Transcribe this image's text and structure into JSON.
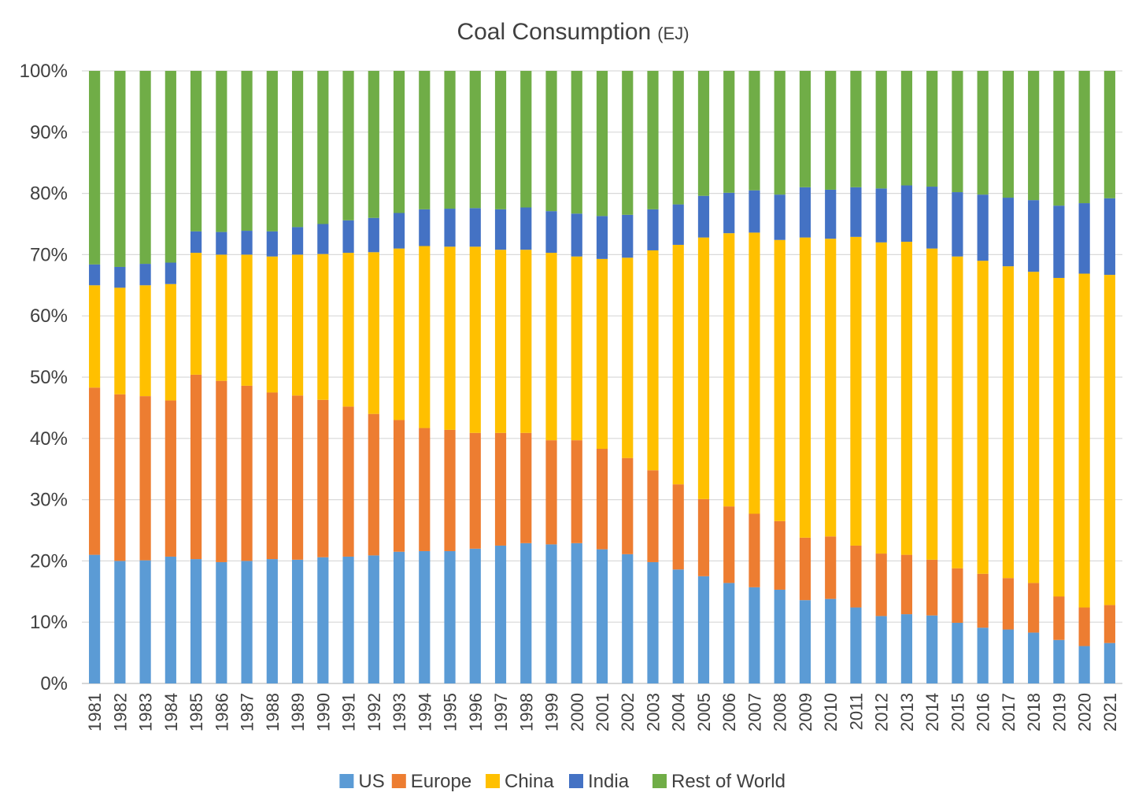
{
  "chart_data": {
    "type": "bar",
    "stacked": true,
    "normalized": true,
    "title": "Coal Consumption",
    "title_unit": "(EJ)",
    "xlabel": "",
    "ylabel": "",
    "ylim": [
      0,
      100
    ],
    "yticks": [
      "0%",
      "10%",
      "20%",
      "30%",
      "40%",
      "50%",
      "60%",
      "70%",
      "80%",
      "90%",
      "100%"
    ],
    "grid": true,
    "legend_position": "bottom",
    "categories": [
      "1981",
      "1982",
      "1983",
      "1984",
      "1985",
      "1986",
      "1987",
      "1988",
      "1989",
      "1990",
      "1991",
      "1992",
      "1993",
      "1994",
      "1995",
      "1996",
      "1997",
      "1998",
      "1999",
      "2000",
      "2001",
      "2002",
      "2003",
      "2004",
      "2005",
      "2006",
      "2007",
      "2008",
      "2009",
      "2010",
      "2011",
      "2012",
      "2013",
      "2014",
      "2015",
      "2016",
      "2017",
      "2018",
      "2019",
      "2020",
      "2021"
    ],
    "series": [
      {
        "name": "US",
        "color": "#5B9BD5",
        "values": [
          21.0,
          20.0,
          20.1,
          20.7,
          20.3,
          19.8,
          20.0,
          20.3,
          20.2,
          20.6,
          20.7,
          20.9,
          21.5,
          21.6,
          21.6,
          22.0,
          22.5,
          22.9,
          22.7,
          22.9,
          21.9,
          21.1,
          19.8,
          18.6,
          17.5,
          16.4,
          15.7,
          15.3,
          13.6,
          13.8,
          12.4,
          11.0,
          11.3,
          11.1,
          9.9,
          9.1,
          8.8,
          8.3,
          7.1,
          6.1,
          6.6
        ]
      },
      {
        "name": "Europe",
        "color": "#ED7D31",
        "values": [
          27.3,
          27.2,
          26.8,
          25.5,
          30.1,
          29.6,
          28.6,
          27.2,
          26.8,
          25.7,
          24.5,
          23.1,
          21.5,
          20.1,
          19.8,
          18.9,
          18.4,
          18.0,
          17.0,
          16.8,
          16.4,
          15.7,
          15.0,
          13.9,
          12.6,
          12.5,
          12.0,
          11.2,
          10.2,
          10.2,
          10.1,
          10.2,
          9.7,
          9.1,
          8.9,
          8.8,
          8.4,
          8.1,
          7.1,
          6.3,
          6.2
        ]
      },
      {
        "name": "China",
        "color": "#FFC000",
        "values": [
          16.7,
          17.4,
          18.1,
          19.0,
          19.9,
          20.6,
          21.4,
          22.2,
          23.0,
          23.8,
          25.1,
          26.4,
          28.0,
          29.7,
          29.9,
          30.4,
          29.9,
          29.9,
          30.6,
          30.0,
          31.0,
          32.7,
          35.9,
          39.1,
          42.7,
          44.6,
          45.9,
          45.9,
          49.0,
          48.6,
          50.4,
          50.8,
          51.1,
          50.8,
          50.9,
          51.1,
          50.9,
          50.8,
          52.0,
          54.5,
          53.9
        ]
      },
      {
        "name": "India",
        "color": "#4472C4",
        "values": [
          3.4,
          3.4,
          3.5,
          3.5,
          3.5,
          3.7,
          3.9,
          4.1,
          4.5,
          4.9,
          5.3,
          5.6,
          5.8,
          6.0,
          6.2,
          6.3,
          6.6,
          6.9,
          6.8,
          7.0,
          7.0,
          7.0,
          6.7,
          6.6,
          6.8,
          6.6,
          6.9,
          7.4,
          8.2,
          8.0,
          8.1,
          8.8,
          9.2,
          10.1,
          10.5,
          10.8,
          11.2,
          11.7,
          11.8,
          11.5,
          12.5
        ]
      },
      {
        "name": "Rest of World",
        "color": "#70AD47",
        "values": [
          31.6,
          32.0,
          31.5,
          31.3,
          26.2,
          26.3,
          26.1,
          26.2,
          25.5,
          25.0,
          24.4,
          24.0,
          23.2,
          22.6,
          22.5,
          22.4,
          22.6,
          22.3,
          22.9,
          23.3,
          23.7,
          23.5,
          22.6,
          21.8,
          20.4,
          19.9,
          19.5,
          20.2,
          19.0,
          19.4,
          19.0,
          19.2,
          18.7,
          18.9,
          19.8,
          20.2,
          20.7,
          21.1,
          22.0,
          21.6,
          20.8
        ]
      }
    ]
  }
}
